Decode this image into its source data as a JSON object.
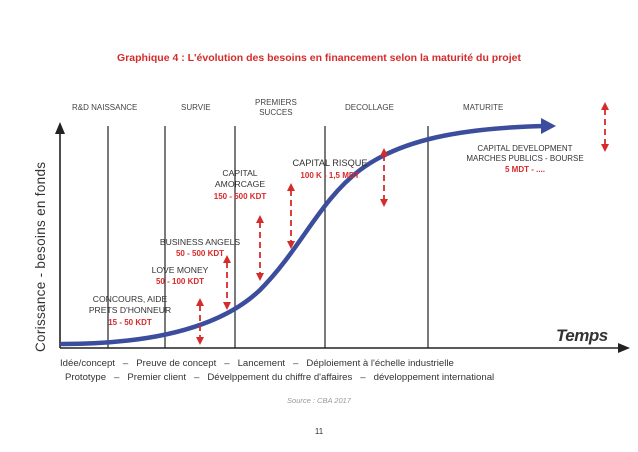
{
  "title": "Graphique 4 : L'évolution des besoins en financement selon la maturité du projet",
  "phases": [
    {
      "label": "R&D NAISSANCE"
    },
    {
      "label": "SURVIE"
    },
    {
      "label": "PREMIERS\nSUCCES"
    },
    {
      "label": "DECOLLAGE"
    },
    {
      "label": "MATURITE"
    }
  ],
  "y_axis_label": "Corissance - besoins en fonds",
  "x_axis_label": "Temps",
  "funding_stages": [
    {
      "name": "CONCOURS, AIDE\nPRETS D'HONNEUR",
      "amount": "15 - 50 KDT"
    },
    {
      "name": "LOVE MONEY",
      "amount": "50 - 100 KDT"
    },
    {
      "name": "BUSINESS ANGELS",
      "amount": "50 - 500 KDT"
    },
    {
      "name": "CAPITAL\nAMORCAGE",
      "amount": "150 - 500 KDT"
    },
    {
      "name": "CAPITAL RISQUE",
      "amount": "100 K - 1,5 MDT"
    },
    {
      "name": "CAPITAL DEVELOPMENT\nMARCHES PUBLICS - BOURSE",
      "amount": "5 MDT - ...."
    }
  ],
  "timeline_row1": "Idée/concept   –   Preuve de concept   –   Lancement   –   Déploiement à l'échelle industrielle",
  "timeline_row2": "Prototype   –   Premier client   –   Dévelppement du chiffre d'affaires   –   développement international",
  "source": "Source : CBA 2017",
  "page_number": "11",
  "colors": {
    "curve": "#3b4d9c",
    "accent": "#d62b2b",
    "axis": "#222222",
    "divider": "#222222"
  }
}
